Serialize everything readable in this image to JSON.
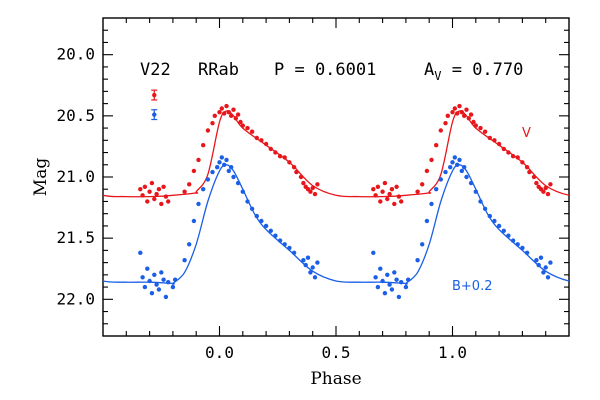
{
  "chart_data": {
    "type": "scatter",
    "header": {
      "star": "V22",
      "variable_type": "RRab",
      "period": "P = 0.6001",
      "amplitude_symbol": "A",
      "amplitude_subscript": "V",
      "amplitude_value": " = 0.770"
    },
    "xlabel": "Phase",
    "ylabel": "Mag",
    "xlim": [
      -0.5,
      1.5
    ],
    "ylim": [
      22.3,
      19.7
    ],
    "y_inverted": true,
    "x_ticks": [
      "0.0",
      "0.5",
      "1.0"
    ],
    "x_tick_values": [
      0.0,
      0.5,
      1.0
    ],
    "y_ticks": [
      "20.0",
      "20.5",
      "21.0",
      "21.5",
      "22.0"
    ],
    "y_tick_values": [
      20.0,
      20.5,
      21.0,
      21.5,
      22.0
    ],
    "grid": false,
    "error_bars": [
      {
        "series": "V",
        "x": -0.28,
        "y": 20.33,
        "err": 0.04
      },
      {
        "series": "B+0.2",
        "x": -0.28,
        "y": 20.49,
        "err": 0.04
      }
    ],
    "series": [
      {
        "name": "V",
        "color": "#e8161b",
        "label_text": "V",
        "template_curve": [
          [
            -0.1,
            21.12
          ],
          [
            -0.05,
            20.98
          ],
          [
            0.0,
            20.55
          ],
          [
            0.03,
            20.46
          ],
          [
            0.06,
            20.5
          ],
          [
            0.1,
            20.6
          ],
          [
            0.2,
            20.74
          ],
          [
            0.3,
            20.88
          ],
          [
            0.4,
            21.07
          ],
          [
            0.5,
            21.15
          ],
          [
            0.6,
            21.16
          ],
          [
            0.7,
            21.16
          ],
          [
            0.8,
            21.15
          ],
          [
            0.9,
            21.13
          ]
        ],
        "points": [
          [
            -0.34,
            21.1
          ],
          [
            -0.33,
            21.15
          ],
          [
            -0.32,
            21.08
          ],
          [
            -0.31,
            21.2
          ],
          [
            -0.3,
            21.12
          ],
          [
            -0.29,
            21.05
          ],
          [
            -0.28,
            21.18
          ],
          [
            -0.27,
            21.14
          ],
          [
            -0.26,
            21.1
          ],
          [
            -0.25,
            21.22
          ],
          [
            -0.24,
            21.08
          ],
          [
            -0.23,
            21.16
          ],
          [
            -0.22,
            21.2
          ],
          [
            -0.15,
            21.12
          ],
          [
            -0.13,
            21.06
          ],
          [
            -0.11,
            20.95
          ],
          [
            -0.09,
            20.86
          ],
          [
            -0.07,
            20.74
          ],
          [
            -0.05,
            20.62
          ],
          [
            -0.03,
            20.56
          ],
          [
            -0.02,
            20.5
          ],
          [
            0.0,
            20.47
          ],
          [
            0.01,
            20.44
          ],
          [
            0.02,
            20.48
          ],
          [
            0.03,
            20.42
          ],
          [
            0.04,
            20.47
          ],
          [
            0.05,
            20.5
          ],
          [
            0.06,
            20.45
          ],
          [
            0.07,
            20.52
          ],
          [
            0.08,
            20.49
          ],
          [
            0.09,
            20.55
          ],
          [
            0.1,
            20.58
          ],
          [
            0.12,
            20.6
          ],
          [
            0.14,
            20.63
          ],
          [
            0.16,
            20.68
          ],
          [
            0.18,
            20.7
          ],
          [
            0.2,
            20.73
          ],
          [
            0.22,
            20.77
          ],
          [
            0.24,
            20.8
          ],
          [
            0.26,
            20.83
          ],
          [
            0.28,
            20.84
          ],
          [
            0.3,
            20.88
          ],
          [
            0.32,
            20.92
          ],
          [
            0.33,
            20.96
          ],
          [
            0.35,
            21.0
          ],
          [
            0.36,
            21.05
          ],
          [
            0.37,
            21.08
          ],
          [
            0.38,
            21.1
          ],
          [
            0.39,
            21.12
          ],
          [
            0.4,
            21.09
          ],
          [
            0.41,
            21.14
          ],
          [
            0.42,
            21.06
          ]
        ]
      },
      {
        "name": "B+0.2",
        "color": "#1a5fe6",
        "label_text": "B+0.2",
        "template_curve": [
          [
            -0.2,
            21.87
          ],
          [
            -0.15,
            21.78
          ],
          [
            -0.1,
            21.55
          ],
          [
            -0.05,
            21.2
          ],
          [
            0.0,
            20.95
          ],
          [
            0.03,
            20.9
          ],
          [
            0.06,
            20.95
          ],
          [
            0.1,
            21.1
          ],
          [
            0.15,
            21.3
          ],
          [
            0.2,
            21.43
          ],
          [
            0.3,
            21.6
          ],
          [
            0.4,
            21.77
          ],
          [
            0.5,
            21.85
          ],
          [
            0.6,
            21.86
          ],
          [
            0.7,
            21.86
          ],
          [
            0.8,
            21.87
          ]
        ],
        "points": [
          [
            -0.34,
            21.62
          ],
          [
            -0.33,
            21.82
          ],
          [
            -0.32,
            21.9
          ],
          [
            -0.31,
            21.75
          ],
          [
            -0.3,
            21.85
          ],
          [
            -0.29,
            21.95
          ],
          [
            -0.28,
            21.8
          ],
          [
            -0.27,
            21.88
          ],
          [
            -0.26,
            21.92
          ],
          [
            -0.25,
            21.78
          ],
          [
            -0.24,
            21.84
          ],
          [
            -0.23,
            21.98
          ],
          [
            -0.22,
            21.86
          ],
          [
            -0.2,
            21.9
          ],
          [
            -0.19,
            21.84
          ],
          [
            -0.15,
            21.68
          ],
          [
            -0.13,
            21.55
          ],
          [
            -0.11,
            21.36
          ],
          [
            -0.09,
            21.22
          ],
          [
            -0.07,
            21.1
          ],
          [
            -0.05,
            21.02
          ],
          [
            -0.03,
            20.96
          ],
          [
            -0.01,
            20.92
          ],
          [
            0.0,
            20.88
          ],
          [
            0.01,
            20.84
          ],
          [
            0.02,
            20.9
          ],
          [
            0.03,
            20.86
          ],
          [
            0.04,
            20.95
          ],
          [
            0.05,
            20.92
          ],
          [
            0.06,
            21.0
          ],
          [
            0.08,
            21.05
          ],
          [
            0.1,
            21.12
          ],
          [
            0.12,
            21.2
          ],
          [
            0.14,
            21.26
          ],
          [
            0.16,
            21.32
          ],
          [
            0.18,
            21.36
          ],
          [
            0.2,
            21.4
          ],
          [
            0.22,
            21.44
          ],
          [
            0.24,
            21.48
          ],
          [
            0.26,
            21.52
          ],
          [
            0.28,
            21.55
          ],
          [
            0.3,
            21.58
          ],
          [
            0.32,
            21.62
          ],
          [
            0.36,
            21.68
          ],
          [
            0.37,
            21.72
          ],
          [
            0.38,
            21.66
          ],
          [
            0.39,
            21.78
          ],
          [
            0.4,
            21.74
          ],
          [
            0.41,
            21.82
          ],
          [
            0.42,
            21.7
          ]
        ]
      }
    ]
  }
}
